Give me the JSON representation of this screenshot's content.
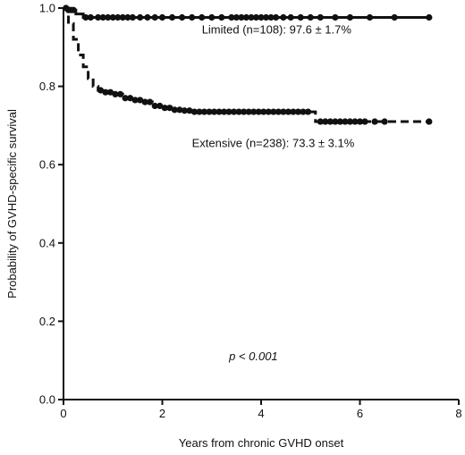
{
  "chart_data": {
    "type": "line",
    "xlabel": "Years from chronic GVHD onset",
    "ylabel": "Probability of GVHD-specific survival",
    "xlim": [
      0,
      8
    ],
    "ylim": [
      0,
      1.0
    ],
    "xticks": [
      0,
      2,
      4,
      6,
      8
    ],
    "yticks": [
      0.0,
      0.2,
      0.4,
      0.6,
      0.8,
      1.0
    ],
    "xtick_labels": [
      "0",
      "2",
      "4",
      "6",
      "8"
    ],
    "ytick_labels": [
      "0.0",
      "0.2",
      "0.4",
      "0.6",
      "0.8",
      "1.0"
    ],
    "grid": false,
    "series": [
      {
        "name": "Limited (n=108): 97.6 ± 1.7%",
        "style": "solid",
        "color": "#111111",
        "x": [
          0,
          0.1,
          0.25,
          0.4,
          7.45
        ],
        "y": [
          1.0,
          0.995,
          0.985,
          0.976,
          0.976
        ],
        "censor_x": [
          0.05,
          0.1,
          0.15,
          0.2,
          0.45,
          0.55,
          0.7,
          0.8,
          0.9,
          1.0,
          1.1,
          1.2,
          1.3,
          1.4,
          1.55,
          1.7,
          1.85,
          2.0,
          2.2,
          2.4,
          2.6,
          2.8,
          3.0,
          3.2,
          3.4,
          3.5,
          3.6,
          3.7,
          3.8,
          3.9,
          4.0,
          4.1,
          4.2,
          4.3,
          4.45,
          4.6,
          4.8,
          5.0,
          5.2,
          5.5,
          5.8,
          6.2,
          6.7,
          7.4
        ]
      },
      {
        "name": "Extensive (n=238): 73.3 ± 3.1%",
        "style": "dashed",
        "color": "#111111",
        "x": [
          0,
          0.1,
          0.2,
          0.3,
          0.4,
          0.5,
          0.6,
          0.7,
          0.8,
          1.0,
          1.2,
          1.4,
          1.6,
          1.8,
          2.0,
          2.2,
          2.4,
          2.6,
          5.05,
          5.1,
          7.45
        ],
        "y": [
          1.0,
          0.96,
          0.92,
          0.88,
          0.85,
          0.82,
          0.8,
          0.79,
          0.785,
          0.78,
          0.77,
          0.765,
          0.76,
          0.75,
          0.745,
          0.74,
          0.738,
          0.735,
          0.735,
          0.71,
          0.71
        ],
        "censor_x": [
          0.75,
          0.85,
          0.95,
          1.05,
          1.15,
          1.25,
          1.35,
          1.45,
          1.55,
          1.65,
          1.75,
          1.85,
          1.95,
          2.05,
          2.15,
          2.25,
          2.35,
          2.45,
          2.55,
          2.65,
          2.75,
          2.85,
          2.95,
          3.05,
          3.15,
          3.25,
          3.35,
          3.45,
          3.55,
          3.65,
          3.75,
          3.85,
          3.95,
          4.05,
          4.15,
          4.25,
          4.35,
          4.45,
          4.55,
          4.65,
          4.75,
          4.85,
          4.95,
          5.2,
          5.3,
          5.4,
          5.5,
          5.6,
          5.7,
          5.8,
          5.9,
          6.0,
          6.1,
          6.3,
          6.5,
          7.4
        ]
      }
    ],
    "annotations": [
      {
        "text": "Limited (n=108): 97.6 ± 1.7%",
        "x": 2.8,
        "y": 0.935
      },
      {
        "text": "Extensive (n=238): 73.3 ± 3.1%",
        "x": 2.6,
        "y": 0.645
      },
      {
        "text": "p < 0.001",
        "x": 3.35,
        "y": 0.1,
        "italic": true
      }
    ]
  }
}
